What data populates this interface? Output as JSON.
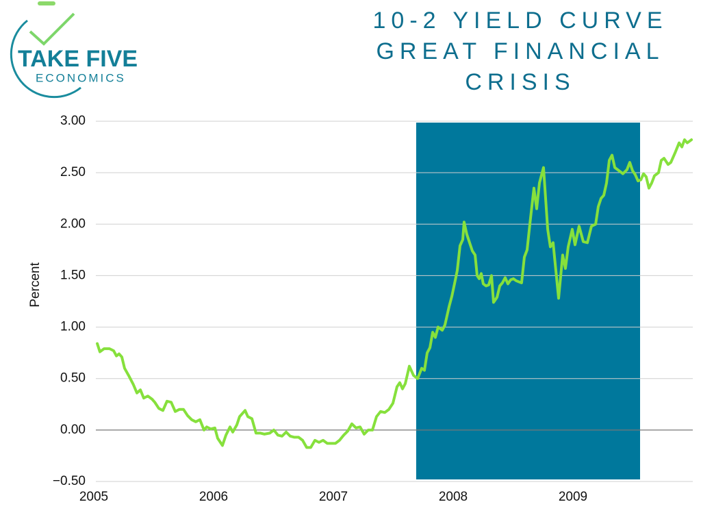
{
  "logo": {
    "line1": "TAKE FIVE",
    "line2": "ECONOMICS"
  },
  "chart_data": {
    "type": "line",
    "title": [
      "10-2 YIELD CURVE",
      "GREAT FINANCIAL",
      "CRISIS"
    ],
    "y_label": "Percent",
    "x": [
      2005.029,
      2005.051,
      2005.086,
      2005.131,
      2005.166,
      2005.189,
      2005.211,
      2005.234,
      2005.257,
      2005.291,
      2005.331,
      2005.36,
      2005.389,
      2005.417,
      2005.451,
      2005.486,
      2005.509,
      2005.543,
      2005.577,
      2005.611,
      2005.646,
      2005.68,
      2005.714,
      2005.749,
      2005.783,
      2005.817,
      2005.851,
      2005.886,
      2005.92,
      2005.943,
      2005.977,
      2006.011,
      2006.034,
      2006.074,
      2006.103,
      2006.137,
      2006.16,
      2006.194,
      2006.217,
      2006.263,
      2006.286,
      2006.32,
      2006.354,
      2006.389,
      2006.423,
      2006.469,
      2006.503,
      2006.537,
      2006.571,
      2006.606,
      2006.64,
      2006.674,
      2006.709,
      2006.743,
      2006.777,
      2006.811,
      2006.846,
      2006.88,
      2006.914,
      2006.949,
      2006.983,
      2007.017,
      2007.051,
      2007.086,
      2007.12,
      2007.154,
      2007.189,
      2007.223,
      2007.257,
      2007.291,
      2007.326,
      2007.36,
      2007.394,
      2007.429,
      2007.463,
      2007.497,
      2007.531,
      2007.554,
      2007.577,
      2007.6,
      2007.634,
      2007.669,
      2007.703,
      2007.737,
      2007.76,
      2007.783,
      2007.806,
      2007.829,
      2007.851,
      2007.874,
      2007.909,
      2007.931,
      2007.966,
      2007.989,
      2008.011,
      2008.034,
      2008.057,
      2008.08,
      2008.091,
      2008.114,
      2008.137,
      2008.16,
      2008.183,
      2008.2,
      2008.217,
      2008.234,
      2008.251,
      2008.274,
      2008.297,
      2008.32,
      2008.337,
      2008.366,
      2008.389,
      2008.411,
      2008.434,
      2008.457,
      2008.48,
      2008.503,
      2008.526,
      2008.549,
      2008.571,
      2008.594,
      2008.617,
      2008.64,
      2008.674,
      2008.697,
      2008.72,
      2008.754,
      2008.789,
      2008.811,
      2008.834,
      2008.88,
      2008.914,
      2008.937,
      2008.96,
      2008.994,
      2009.017,
      2009.051,
      2009.086,
      2009.12,
      2009.154,
      2009.189,
      2009.211,
      2009.234,
      2009.257,
      2009.28,
      2009.303,
      2009.326,
      2009.349,
      2009.383,
      2009.417,
      2009.451,
      2009.474,
      2009.497,
      2009.52,
      2009.543,
      2009.566,
      2009.589,
      2009.611,
      2009.634,
      2009.657,
      2009.68,
      2009.714,
      2009.737,
      2009.76,
      2009.794,
      2009.817,
      2009.851,
      2009.886,
      2009.909,
      2009.931,
      2009.954,
      2009.989
    ],
    "series": [
      {
        "color": "#86e03c",
        "values": [
          0.84,
          0.76,
          0.79,
          0.79,
          0.77,
          0.72,
          0.74,
          0.71,
          0.6,
          0.53,
          0.44,
          0.36,
          0.39,
          0.31,
          0.33,
          0.3,
          0.27,
          0.21,
          0.19,
          0.28,
          0.27,
          0.18,
          0.2,
          0.2,
          0.14,
          0.1,
          0.08,
          0.1,
          0.0,
          0.03,
          0.01,
          0.02,
          -0.08,
          -0.15,
          -0.05,
          0.03,
          -0.02,
          0.05,
          0.13,
          0.19,
          0.13,
          0.11,
          -0.03,
          -0.03,
          -0.04,
          -0.03,
          0.0,
          -0.05,
          -0.06,
          -0.02,
          -0.06,
          -0.07,
          -0.07,
          -0.1,
          -0.17,
          -0.17,
          -0.1,
          -0.12,
          -0.1,
          -0.13,
          -0.13,
          -0.13,
          -0.1,
          -0.05,
          -0.01,
          0.06,
          0.02,
          0.03,
          -0.04,
          0.0,
          0.0,
          0.13,
          0.18,
          0.17,
          0.2,
          0.26,
          0.42,
          0.46,
          0.4,
          0.45,
          0.62,
          0.53,
          0.5,
          0.6,
          0.58,
          0.75,
          0.8,
          0.95,
          0.9,
          1.0,
          0.97,
          1.02,
          1.2,
          1.3,
          1.42,
          1.55,
          1.79,
          1.85,
          2.02,
          1.9,
          1.82,
          1.74,
          1.7,
          1.5,
          1.47,
          1.52,
          1.42,
          1.4,
          1.41,
          1.5,
          1.24,
          1.29,
          1.4,
          1.43,
          1.48,
          1.42,
          1.46,
          1.47,
          1.45,
          1.44,
          1.43,
          1.68,
          1.75,
          2.0,
          2.35,
          2.15,
          2.4,
          2.55,
          1.95,
          1.78,
          1.82,
          1.28,
          1.7,
          1.57,
          1.78,
          1.95,
          1.8,
          1.98,
          1.83,
          1.82,
          1.98,
          2.0,
          2.17,
          2.25,
          2.28,
          2.4,
          2.62,
          2.67,
          2.55,
          2.52,
          2.49,
          2.53,
          2.6,
          2.52,
          2.48,
          2.42,
          2.43,
          2.49,
          2.46,
          2.35,
          2.4,
          2.47,
          2.5,
          2.62,
          2.64,
          2.58,
          2.6,
          2.69,
          2.79,
          2.75,
          2.82,
          2.79,
          2.82
        ]
      }
    ],
    "shaded_region": {
      "x": [
        2007.691,
        2009.56
      ],
      "color": "#00789c"
    },
    "xlim": [
      2005,
      2010
    ],
    "xticks": [
      2005,
      2006,
      2007,
      2008,
      2009
    ],
    "ylim": [
      -0.5,
      3
    ],
    "yticks": [
      {
        "value": -0.5,
        "label": "−0.50"
      },
      {
        "value": 0,
        "label": "0.00"
      },
      {
        "value": 0.5,
        "label": "0.50"
      },
      {
        "value": 1,
        "label": "1.00"
      },
      {
        "value": 1.5,
        "label": "1.50"
      },
      {
        "value": 2,
        "label": "2.00"
      },
      {
        "value": 2.5,
        "label": "2.50"
      },
      {
        "value": 3,
        "label": "3.00"
      }
    ],
    "grid": true
  }
}
